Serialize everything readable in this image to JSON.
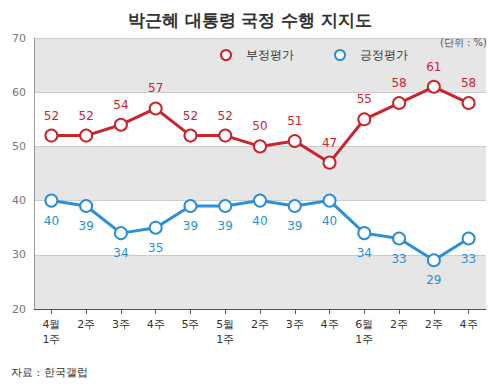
{
  "chart_data": {
    "type": "line",
    "title": "박근혜 대통령 국정 수행 지지도",
    "unit": "(단위 : %)",
    "source": "자료 : 한국갤럽",
    "categories": [
      "4월\n1주",
      "2주",
      "3주",
      "4주",
      "5주",
      "5월\n1주",
      "2주",
      "3주",
      "4주",
      "6월\n1주",
      "2주",
      "2주",
      "4주"
    ],
    "series": [
      {
        "name": "부정평가",
        "color": "#c8252c",
        "values": [
          52,
          52,
          54,
          57,
          52,
          52,
          50,
          51,
          47,
          55,
          58,
          61,
          58
        ]
      },
      {
        "name": "긍정평가",
        "color": "#2b8fd6",
        "values": [
          40,
          39,
          34,
          35,
          39,
          39,
          40,
          39,
          40,
          34,
          33,
          29,
          33
        ]
      }
    ],
    "ylim": [
      20,
      70
    ],
    "yticks": [
      20,
      30,
      40,
      50,
      60,
      70
    ],
    "grid": true,
    "data_labels": true,
    "marker": "circle",
    "legend": "top"
  }
}
